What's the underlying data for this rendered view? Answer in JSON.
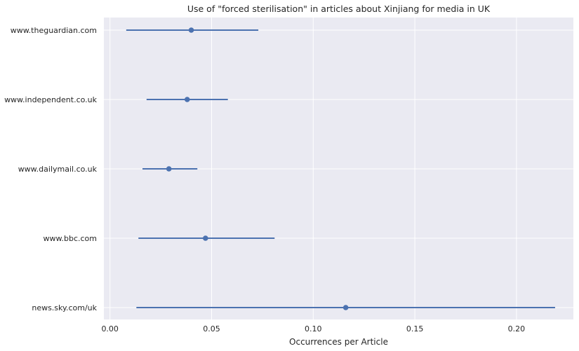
{
  "chart_data": {
    "type": "scatter",
    "title": "Use of \"forced sterilisation\" in articles about Xinjiang for media in UK",
    "xlabel": "Occurrences per Article",
    "ylabel": "",
    "xlim": [
      -0.003,
      0.228
    ],
    "xticks": [
      0.0,
      0.05,
      0.1,
      0.15,
      0.2
    ],
    "xtick_labels": [
      "0.00",
      "0.05",
      "0.10",
      "0.15",
      "0.20"
    ],
    "grid": true,
    "categories": [
      "www.theguardian.com",
      "www.independent.co.uk",
      "www.dailymail.co.uk",
      "www.bbc.com",
      "news.sky.com/uk"
    ],
    "values": [
      0.04,
      0.038,
      0.029,
      0.047,
      0.116
    ],
    "ci_low": [
      0.008,
      0.018,
      0.016,
      0.014,
      0.013
    ],
    "ci_high": [
      0.073,
      0.058,
      0.043,
      0.081,
      0.219
    ],
    "colors": {
      "background": "#EAEAF2",
      "grid": "#FFFFFF",
      "series": "#4C72B0"
    }
  }
}
